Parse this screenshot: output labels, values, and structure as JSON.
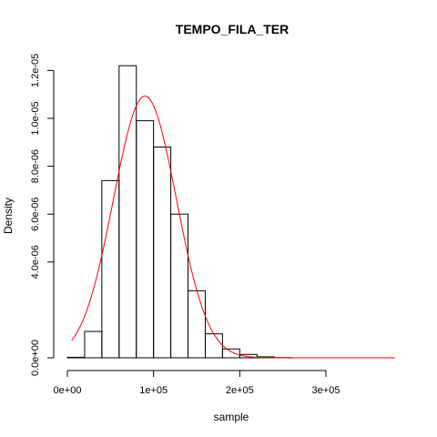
{
  "chart_data": {
    "type": "bar",
    "title": "TEMPO_FILA_TER",
    "xlabel": "sample",
    "ylabel": "Density",
    "xlim": [
      0,
      380000
    ],
    "ylim": [
      0,
      1.22e-05
    ],
    "xticks": [
      0,
      100000,
      200000,
      300000
    ],
    "xtick_labels": [
      "0e+00",
      "1e+05",
      "2e+05",
      "3e+05"
    ],
    "yticks": [
      0,
      4e-06,
      6e-06,
      8e-06,
      1e-05,
      1.2e-05
    ],
    "ytick_labels": [
      "0.0e+00",
      "4.0e-06",
      "6.0e-06",
      "8.0e-06",
      "1.0e-05",
      "1.2e-05"
    ],
    "bin_width": 20000,
    "bins": [
      {
        "x0": 0,
        "x1": 20000,
        "density": 2e-08
      },
      {
        "x0": 20000,
        "x1": 40000,
        "density": 1.1e-06
      },
      {
        "x0": 40000,
        "x1": 60000,
        "density": 7.4e-06
      },
      {
        "x0": 60000,
        "x1": 80000,
        "density": 1.22e-05
      },
      {
        "x0": 80000,
        "x1": 100000,
        "density": 9.9e-06
      },
      {
        "x0": 100000,
        "x1": 120000,
        "density": 8.8e-06
      },
      {
        "x0": 120000,
        "x1": 140000,
        "density": 6e-06
      },
      {
        "x0": 140000,
        "x1": 160000,
        "density": 2.8e-06
      },
      {
        "x0": 160000,
        "x1": 180000,
        "density": 1e-06
      },
      {
        "x0": 180000,
        "x1": 200000,
        "density": 3.7e-07
      },
      {
        "x0": 200000,
        "x1": 220000,
        "density": 1.4e-07
      },
      {
        "x0": 220000,
        "x1": 240000,
        "density": 4e-08
      },
      {
        "x0": 240000,
        "x1": 260000,
        "density": 1e-08
      }
    ],
    "curve": {
      "type": "normal-density",
      "color": "#ff0000",
      "mean": 90000,
      "sd": 36500,
      "x_range": [
        5000,
        380000
      ]
    },
    "grid": false,
    "legend": "none"
  }
}
